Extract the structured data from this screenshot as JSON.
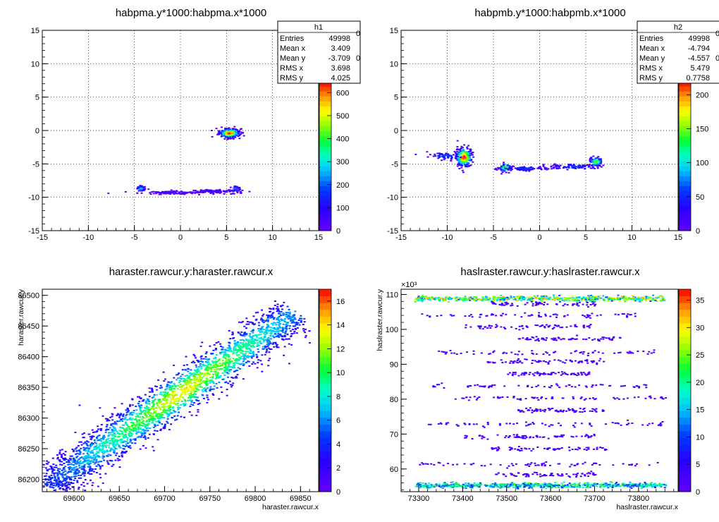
{
  "chart_data": [
    {
      "type": "heatmap",
      "title": "habpma.y*1000:habpma.x*1000",
      "xlabel": "",
      "ylabel": "",
      "xlim": [
        -15,
        15
      ],
      "ylim": [
        -15,
        15
      ],
      "xticks": [
        -15,
        -10,
        -5,
        0,
        5,
        10,
        15
      ],
      "yticks": [
        -15,
        -10,
        -5,
        0,
        5,
        10,
        15
      ],
      "grid": true,
      "colorbar": {
        "min": 0,
        "max": 650,
        "ticks": [
          0,
          100,
          200,
          300,
          400,
          500,
          600
        ],
        "visible_partial_label": "0"
      },
      "stats": {
        "name": "h1",
        "rows": [
          {
            "label": "Entries",
            "value": "49998"
          },
          {
            "label": "Mean x",
            "value": "3.409"
          },
          {
            "label": "Mean y",
            "value": "-3.709"
          },
          {
            "label": "RMS x",
            "value": "3.698"
          },
          {
            "label": "RMS y",
            "value": "4.025"
          }
        ]
      },
      "clusters": [
        {
          "x": 5.2,
          "y": -0.3,
          "sx": 0.55,
          "sy": 0.35,
          "n": 260,
          "peak": 650
        },
        {
          "x": -4.4,
          "y": -8.6,
          "sx": 0.25,
          "sy": 0.22,
          "n": 50,
          "peak": 300
        },
        {
          "x": 5.9,
          "y": -8.7,
          "sx": 0.3,
          "sy": 0.22,
          "n": 60,
          "peak": 300
        },
        {
          "x": -1.5,
          "y": -9.2,
          "sx": 1.6,
          "sy": 0.12,
          "n": 110,
          "peak": 60
        },
        {
          "x": 3.5,
          "y": -9.0,
          "sx": 1.4,
          "sy": 0.15,
          "n": 110,
          "peak": 60
        }
      ]
    },
    {
      "type": "heatmap",
      "title": "habpmb.y*1000:habpmb.x*1000",
      "xlabel": "",
      "ylabel": "",
      "xlim": [
        -15,
        15
      ],
      "ylim": [
        -15,
        15
      ],
      "xticks": [
        -15,
        -10,
        -5,
        0,
        5,
        10,
        15
      ],
      "yticks": [
        -15,
        -10,
        -5,
        0,
        5,
        10,
        15
      ],
      "grid": true,
      "colorbar": {
        "min": 0,
        "max": 220,
        "ticks": [
          0,
          50,
          100,
          150,
          200
        ],
        "visible_partial_label": "0"
      },
      "stats": {
        "name": "h2",
        "rows": [
          {
            "label": "Entries",
            "value": "49998"
          },
          {
            "label": "Mean x",
            "value": "-4.794"
          },
          {
            "label": "Mean y",
            "value": "-4.557"
          },
          {
            "label": "RMS x",
            "value": "5.479"
          },
          {
            "label": "RMS y",
            "value": "0.7758"
          }
        ]
      },
      "clusters": [
        {
          "x": -8.3,
          "y": -3.9,
          "sx": 0.45,
          "sy": 0.7,
          "n": 230,
          "peak": 220
        },
        {
          "x": -10.2,
          "y": -3.7,
          "sx": 1.0,
          "sy": 0.25,
          "n": 60,
          "peak": 60
        },
        {
          "x": -3.8,
          "y": -5.5,
          "sx": 0.35,
          "sy": 0.3,
          "n": 60,
          "peak": 150
        },
        {
          "x": -1.5,
          "y": -5.6,
          "sx": 1.3,
          "sy": 0.15,
          "n": 90,
          "peak": 60
        },
        {
          "x": 3.5,
          "y": -5.3,
          "sx": 1.5,
          "sy": 0.2,
          "n": 100,
          "peak": 60
        },
        {
          "x": 6.0,
          "y": -4.6,
          "sx": 0.35,
          "sy": 0.35,
          "n": 60,
          "peak": 150
        }
      ]
    },
    {
      "type": "heatmap",
      "title": "haraster.rawcur.y:haraster.rawcur.x",
      "xlabel": "haraster.rawcur.x",
      "ylabel": "haraster.rawcur.y",
      "xlim": [
        69565,
        69870
      ],
      "ylim": [
        86180,
        86510
      ],
      "xticks": [
        69600,
        69650,
        69700,
        69750,
        69800,
        69850
      ],
      "yticks": [
        86200,
        86250,
        86300,
        86350,
        86400,
        86450,
        86500
      ],
      "grid": false,
      "colorbar": {
        "min": 0,
        "max": 17,
        "ticks": [
          0,
          2,
          4,
          6,
          8,
          10,
          12,
          14,
          16
        ]
      },
      "band": {
        "x_start": 69570,
        "y_start": 86190,
        "x_end": 69840,
        "y_end": 86470,
        "half_width": 14,
        "peak": 13
      }
    },
    {
      "type": "heatmap",
      "title": "haslraster.rawcur.y:haslraster.rawcur.x",
      "xlabel": "haslraster.rawcur.x",
      "ylabel": "haslraster.rawcur.y",
      "y_multiplier": "×10³",
      "xlim": [
        73260,
        73890
      ],
      "ylim": [
        53.5,
        111.5
      ],
      "xticks": [
        73300,
        73400,
        73500,
        73600,
        73700,
        73800
      ],
      "yticks": [
        60,
        70,
        80,
        90,
        100,
        110
      ],
      "grid": false,
      "colorbar": {
        "min": 0,
        "max": 37,
        "ticks": [
          0,
          5,
          10,
          15,
          20,
          25,
          30,
          35
        ]
      },
      "bands": [
        {
          "y": 109.0,
          "x0": 73290,
          "x1": 73860,
          "peak": 30
        },
        {
          "y": 55.5,
          "x0": 73290,
          "x1": 73860,
          "peak": 22
        },
        {
          "y": 107.5,
          "x0": 73460,
          "x1": 73700,
          "peak": 4
        },
        {
          "y": 104.2,
          "x0": 73300,
          "x1": 73800,
          "peak": 3
        },
        {
          "y": 101.0,
          "x0": 73400,
          "x1": 73700,
          "peak": 3
        },
        {
          "y": 97.5,
          "x0": 73520,
          "x1": 73760,
          "peak": 3
        },
        {
          "y": 93.5,
          "x0": 73330,
          "x1": 73860,
          "peak": 3
        },
        {
          "y": 91.0,
          "x0": 73450,
          "x1": 73720,
          "peak": 3
        },
        {
          "y": 87.5,
          "x0": 73500,
          "x1": 73690,
          "peak": 3
        },
        {
          "y": 84.0,
          "x0": 73330,
          "x1": 73820,
          "peak": 3
        },
        {
          "y": 80.5,
          "x0": 73380,
          "x1": 73860,
          "peak": 3
        },
        {
          "y": 77.0,
          "x0": 73520,
          "x1": 73720,
          "peak": 3
        },
        {
          "y": 73.0,
          "x0": 73320,
          "x1": 73860,
          "peak": 3
        },
        {
          "y": 69.5,
          "x0": 73400,
          "x1": 73700,
          "peak": 3
        },
        {
          "y": 66.0,
          "x0": 73460,
          "x1": 73730,
          "peak": 3
        },
        {
          "y": 61.5,
          "x0": 73300,
          "x1": 73860,
          "peak": 3
        },
        {
          "y": 58.5,
          "x0": 73470,
          "x1": 73700,
          "peak": 3
        }
      ]
    }
  ]
}
